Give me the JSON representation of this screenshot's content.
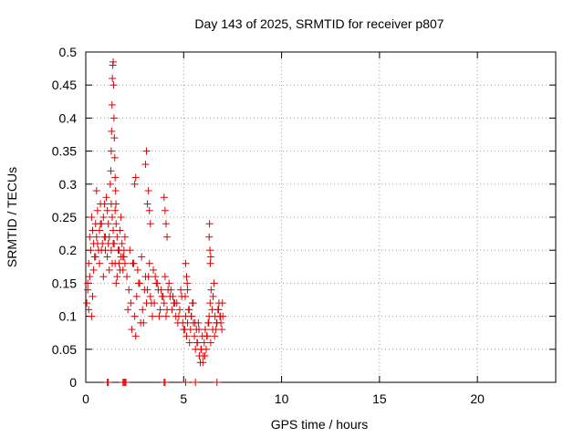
{
  "chart_data": {
    "type": "scatter",
    "title": "Day 143 of 2025, SRMTID for receiver p807",
    "xlabel": "GPS time / hours",
    "ylabel": "SRMTID / TECUs",
    "xlim": [
      0,
      24
    ],
    "ylim": [
      0,
      0.5
    ],
    "xticks": [
      0,
      5,
      10,
      15,
      20
    ],
    "xtick_labels": [
      "0",
      "5",
      "10",
      "15",
      "20"
    ],
    "yticks": [
      0,
      0.05,
      0.1,
      0.15,
      0.2,
      0.25,
      0.3,
      0.35,
      0.4,
      0.45,
      0.5
    ],
    "ytick_labels": [
      "0",
      "0.05",
      "0.1",
      "0.15",
      "0.2",
      "0.25",
      "0.3",
      "0.35",
      "0.4",
      "0.45",
      "0.5"
    ],
    "grid": true,
    "marker": "+",
    "color": "#e00000",
    "series": [
      {
        "name": "SRMTID",
        "x": [
          0.05,
          0.1,
          0.15,
          0.2,
          0.25,
          0.3,
          0.35,
          0.4,
          0.45,
          0.5,
          0.55,
          0.6,
          0.65,
          0.7,
          0.75,
          0.8,
          0.85,
          0.9,
          0.95,
          1.0,
          1.05,
          1.1,
          1.15,
          1.2,
          1.25,
          1.3,
          1.35,
          1.4,
          1.45,
          1.5,
          1.55,
          1.6,
          1.65,
          1.7,
          1.75,
          1.8,
          1.85,
          1.9,
          1.95,
          2.0,
          0.1,
          0.2,
          0.3,
          0.4,
          0.5,
          0.6,
          0.7,
          0.8,
          0.9,
          1.0,
          1.1,
          1.2,
          1.3,
          1.4,
          1.5,
          1.6,
          1.7,
          1.8,
          1.9,
          2.0,
          0.15,
          0.35,
          0.55,
          0.75,
          0.95,
          1.15,
          1.35,
          1.55,
          1.75,
          1.95,
          1.28,
          1.3,
          1.32,
          1.34,
          1.36,
          1.38,
          1.4,
          1.42,
          1.44,
          1.46,
          1.48,
          1.5,
          1.52,
          1.54,
          2.1,
          2.2,
          2.3,
          2.4,
          2.5,
          2.6,
          2.7,
          2.8,
          2.9,
          3.0,
          3.1,
          3.2,
          3.3,
          3.4,
          3.5,
          3.6,
          3.7,
          3.8,
          3.9,
          4.0,
          4.1,
          4.2,
          4.3,
          4.4,
          4.5,
          4.6,
          4.7,
          4.8,
          4.9,
          5.0,
          2.15,
          2.35,
          2.55,
          2.75,
          2.95,
          3.15,
          3.35,
          3.55,
          3.75,
          3.95,
          4.15,
          4.35,
          4.55,
          4.75,
          4.95,
          2.5,
          2.55,
          3.05,
          3.1,
          3.15,
          3.2,
          3.25,
          3.3,
          4.0,
          4.05,
          4.1,
          4.15,
          2.25,
          2.45,
          2.65,
          2.85,
          3.05,
          3.25,
          3.45,
          3.65,
          3.85,
          4.05,
          4.25,
          4.45,
          4.65,
          4.85,
          5.05,
          5.1,
          5.15,
          5.2,
          5.25,
          5.3,
          5.35,
          5.4,
          5.45,
          5.5,
          5.55,
          5.6,
          5.65,
          5.7,
          5.75,
          5.8,
          5.85,
          5.9,
          5.95,
          6.0,
          6.05,
          6.1,
          6.15,
          6.2,
          6.25,
          6.3,
          6.35,
          6.4,
          6.45,
          6.5,
          6.55,
          6.6,
          6.65,
          6.7,
          6.75,
          6.8,
          6.85,
          6.9,
          6.95,
          7.0,
          5.08,
          5.18,
          5.28,
          5.38,
          5.48,
          5.58,
          5.68,
          5.78,
          5.88,
          5.98,
          6.08,
          6.18,
          6.28,
          6.38,
          6.48,
          6.58,
          6.68,
          6.78,
          6.88,
          6.98,
          6.3,
          6.32,
          6.34,
          6.36,
          6.38,
          5.1,
          5.15,
          5.2,
          1.1,
          1.15,
          1.9,
          1.95,
          2.0,
          2.05,
          4.0,
          4.05,
          5.1,
          5.6,
          6.7
        ],
        "y": [
          0.12,
          0.15,
          0.18,
          0.22,
          0.2,
          0.25,
          0.23,
          0.21,
          0.19,
          0.24,
          0.22,
          0.26,
          0.2,
          0.23,
          0.27,
          0.24,
          0.21,
          0.25,
          0.22,
          0.2,
          0.28,
          0.26,
          0.24,
          0.22,
          0.3,
          0.27,
          0.25,
          0.23,
          0.21,
          0.26,
          0.24,
          0.22,
          0.2,
          0.18,
          0.23,
          0.25,
          0.21,
          0.19,
          0.2,
          0.22,
          0.14,
          0.16,
          0.1,
          0.17,
          0.19,
          0.21,
          0.18,
          0.2,
          0.16,
          0.22,
          0.19,
          0.17,
          0.2,
          0.21,
          0.18,
          0.16,
          0.2,
          0.19,
          0.17,
          0.18,
          0.11,
          0.13,
          0.29,
          0.24,
          0.27,
          0.21,
          0.18,
          0.15,
          0.17,
          0.19,
          0.32,
          0.35,
          0.38,
          0.42,
          0.46,
          0.48,
          0.485,
          0.45,
          0.4,
          0.37,
          0.34,
          0.31,
          0.29,
          0.27,
          0.16,
          0.14,
          0.12,
          0.18,
          0.1,
          0.13,
          0.15,
          0.09,
          0.11,
          0.14,
          0.12,
          0.16,
          0.13,
          0.1,
          0.12,
          0.15,
          0.14,
          0.11,
          0.13,
          0.12,
          0.1,
          0.14,
          0.13,
          0.11,
          0.12,
          0.1,
          0.09,
          0.11,
          0.13,
          0.08,
          0.11,
          0.08,
          0.07,
          0.15,
          0.09,
          0.14,
          0.12,
          0.16,
          0.1,
          0.13,
          0.11,
          0.14,
          0.12,
          0.1,
          0.09,
          0.3,
          0.31,
          0.33,
          0.35,
          0.27,
          0.29,
          0.26,
          0.24,
          0.28,
          0.26,
          0.24,
          0.22,
          0.2,
          0.18,
          0.17,
          0.19,
          0.16,
          0.18,
          0.17,
          0.15,
          0.14,
          0.16,
          0.15,
          0.13,
          0.12,
          0.14,
          0.08,
          0.1,
          0.07,
          0.09,
          0.11,
          0.06,
          0.08,
          0.1,
          0.12,
          0.09,
          0.07,
          0.05,
          0.08,
          0.06,
          0.09,
          0.04,
          0.03,
          0.05,
          0.07,
          0.04,
          0.06,
          0.08,
          0.05,
          0.07,
          0.09,
          0.1,
          0.12,
          0.14,
          0.11,
          0.13,
          0.15,
          0.1,
          0.08,
          0.09,
          0.11,
          0.12,
          0.1,
          0.09,
          0.08,
          0.1,
          0.13,
          0.15,
          0.11,
          0.1,
          0.12,
          0.09,
          0.06,
          0.08,
          0.05,
          0.03,
          0.04,
          0.07,
          0.09,
          0.06,
          0.08,
          0.07,
          0.09,
          0.11,
          0.1,
          0.12,
          0.22,
          0.24,
          0.2,
          0.18,
          0.19,
          0.18,
          0.16,
          0.14,
          0,
          0,
          0,
          0,
          0,
          0,
          0,
          0,
          0,
          0,
          0
        ]
      }
    ]
  }
}
